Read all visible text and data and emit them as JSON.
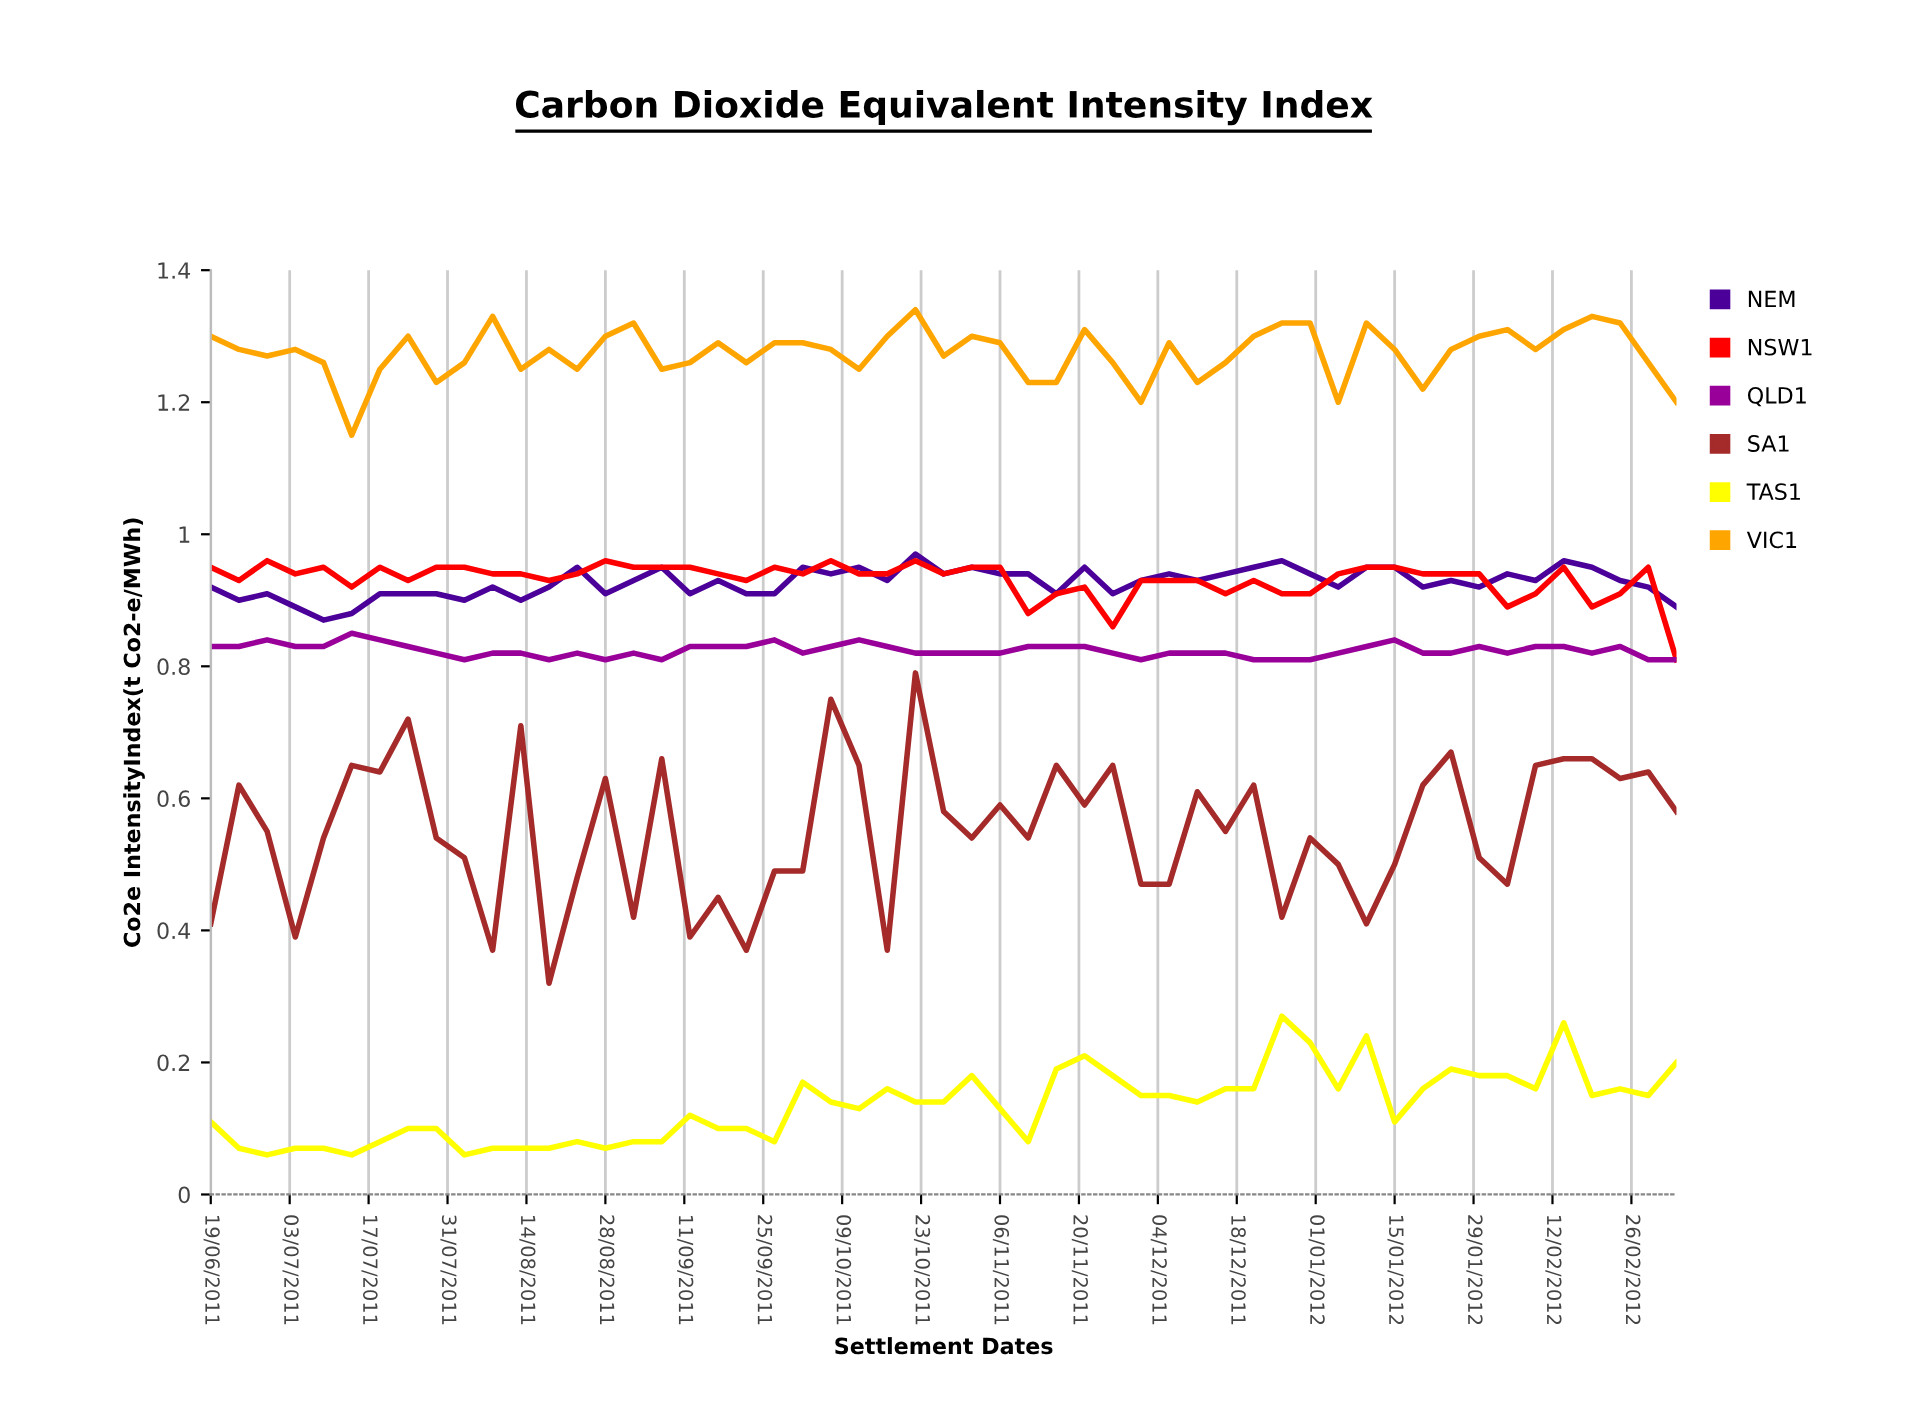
{
  "chart_data": {
    "type": "line",
    "title": "Carbon Dioxide Equivalent Intensity Index",
    "xlabel": "Settlement Dates",
    "ylabel": "Co2e IntensityIndex(t Co2-e/MWh)",
    "x": [
      "2011-06-19",
      "2011-06-24",
      "2011-06-29",
      "2011-07-04",
      "2011-07-09",
      "2011-07-14",
      "2011-07-19",
      "2011-07-24",
      "2011-07-29",
      "2011-08-03",
      "2011-08-08",
      "2011-08-13",
      "2011-08-18",
      "2011-08-23",
      "2011-08-28",
      "2011-09-02",
      "2011-09-07",
      "2011-09-12",
      "2011-09-17",
      "2011-09-22",
      "2011-09-27",
      "2011-10-02",
      "2011-10-07",
      "2011-10-12",
      "2011-10-17",
      "2011-10-22",
      "2011-10-27",
      "2011-11-01",
      "2011-11-06",
      "2011-11-11",
      "2011-11-16",
      "2011-11-21",
      "2011-11-26",
      "2011-12-01",
      "2011-12-06",
      "2011-12-11",
      "2011-12-16",
      "2011-12-21",
      "2011-12-26",
      "2011-12-31",
      "2012-01-05",
      "2012-01-10",
      "2012-01-15",
      "2012-01-20",
      "2012-01-25",
      "2012-01-30",
      "2012-02-04",
      "2012-02-09",
      "2012-02-14",
      "2012-02-19",
      "2012-02-24",
      "2012-02-29",
      "2012-03-05"
    ],
    "series": [
      {
        "name": "NEM",
        "color": "#4b0099",
        "values": [
          0.92,
          0.9,
          0.91,
          0.89,
          0.87,
          0.88,
          0.91,
          0.91,
          0.91,
          0.9,
          0.92,
          0.9,
          0.92,
          0.95,
          0.91,
          0.93,
          0.95,
          0.91,
          0.93,
          0.91,
          0.91,
          0.95,
          0.94,
          0.95,
          0.93,
          0.97,
          0.94,
          0.95,
          0.94,
          0.94,
          0.91,
          0.95,
          0.91,
          0.93,
          0.94,
          0.93,
          0.94,
          0.95,
          0.96,
          0.94,
          0.92,
          0.95,
          0.95,
          0.92,
          0.93,
          0.92,
          0.94,
          0.93,
          0.96,
          0.95,
          0.93,
          0.92,
          0.89
        ]
      },
      {
        "name": "NSW1",
        "color": "#ff0000",
        "values": [
          0.95,
          0.93,
          0.96,
          0.94,
          0.95,
          0.92,
          0.95,
          0.93,
          0.95,
          0.95,
          0.94,
          0.94,
          0.93,
          0.94,
          0.96,
          0.95,
          0.95,
          0.95,
          0.94,
          0.93,
          0.95,
          0.94,
          0.96,
          0.94,
          0.94,
          0.96,
          0.94,
          0.95,
          0.95,
          0.88,
          0.91,
          0.92,
          0.86,
          0.93,
          0.93,
          0.93,
          0.91,
          0.93,
          0.91,
          0.91,
          0.94,
          0.95,
          0.95,
          0.94,
          0.94,
          0.94,
          0.89,
          0.91,
          0.95,
          0.89,
          0.91,
          0.95,
          0.81
        ]
      },
      {
        "name": "QLD1",
        "color": "#990099",
        "values": [
          0.83,
          0.83,
          0.84,
          0.83,
          0.83,
          0.85,
          0.84,
          0.83,
          0.82,
          0.81,
          0.82,
          0.82,
          0.81,
          0.82,
          0.81,
          0.82,
          0.81,
          0.83,
          0.83,
          0.83,
          0.84,
          0.82,
          0.83,
          0.84,
          0.83,
          0.82,
          0.82,
          0.82,
          0.82,
          0.83,
          0.83,
          0.83,
          0.82,
          0.81,
          0.82,
          0.82,
          0.82,
          0.81,
          0.81,
          0.81,
          0.82,
          0.83,
          0.84,
          0.82,
          0.82,
          0.83,
          0.82,
          0.83,
          0.83,
          0.82,
          0.83,
          0.81,
          0.81
        ]
      },
      {
        "name": "SA1",
        "color": "#a52a2a",
        "values": [
          0.41,
          0.62,
          0.55,
          0.39,
          0.54,
          0.65,
          0.64,
          0.72,
          0.54,
          0.51,
          0.37,
          0.71,
          0.32,
          0.48,
          0.63,
          0.42,
          0.66,
          0.39,
          0.45,
          0.37,
          0.49,
          0.49,
          0.75,
          0.65,
          0.37,
          0.79,
          0.58,
          0.54,
          0.59,
          0.54,
          0.65,
          0.59,
          0.65,
          0.47,
          0.47,
          0.61,
          0.55,
          0.62,
          0.42,
          0.54,
          0.5,
          0.41,
          0.5,
          0.62,
          0.67,
          0.51,
          0.47,
          0.65,
          0.66,
          0.66,
          0.63,
          0.64,
          0.58
        ]
      },
      {
        "name": "TAS1",
        "color": "#ffff00",
        "values": [
          0.11,
          0.07,
          0.06,
          0.07,
          0.07,
          0.06,
          0.08,
          0.1,
          0.1,
          0.06,
          0.07,
          0.07,
          0.07,
          0.08,
          0.07,
          0.08,
          0.08,
          0.12,
          0.1,
          0.1,
          0.08,
          0.17,
          0.14,
          0.13,
          0.16,
          0.14,
          0.14,
          0.18,
          0.13,
          0.08,
          0.19,
          0.21,
          0.18,
          0.15,
          0.15,
          0.14,
          0.16,
          0.16,
          0.27,
          0.23,
          0.16,
          0.24,
          0.11,
          0.16,
          0.19,
          0.18,
          0.18,
          0.16,
          0.26,
          0.15,
          0.16,
          0.15,
          0.2
        ]
      },
      {
        "name": "VIC1",
        "color": "#ffa500",
        "values": [
          1.3,
          1.28,
          1.27,
          1.28,
          1.26,
          1.15,
          1.25,
          1.3,
          1.23,
          1.26,
          1.33,
          1.25,
          1.28,
          1.25,
          1.3,
          1.32,
          1.25,
          1.26,
          1.29,
          1.26,
          1.29,
          1.29,
          1.28,
          1.25,
          1.3,
          1.34,
          1.27,
          1.3,
          1.29,
          1.23,
          1.23,
          1.31,
          1.26,
          1.2,
          1.29,
          1.23,
          1.26,
          1.3,
          1.32,
          1.32,
          1.2,
          1.32,
          1.28,
          1.22,
          1.28,
          1.3,
          1.31,
          1.28,
          1.31,
          1.33,
          1.32,
          1.26,
          1.2
        ]
      }
    ],
    "xlim": [
      "2011-06-19",
      "2012-03-05"
    ],
    "xticks": [
      {
        "value": "2011-06-19",
        "label": "19/06/2011"
      },
      {
        "value": "2011-07-03",
        "label": "03/07/2011"
      },
      {
        "value": "2011-07-17",
        "label": "17/07/2011"
      },
      {
        "value": "2011-07-31",
        "label": "31/07/2011"
      },
      {
        "value": "2011-08-14",
        "label": "14/08/2011"
      },
      {
        "value": "2011-08-28",
        "label": "28/08/2011"
      },
      {
        "value": "2011-09-11",
        "label": "11/09/2011"
      },
      {
        "value": "2011-09-25",
        "label": "25/09/2011"
      },
      {
        "value": "2011-10-09",
        "label": "09/10/2011"
      },
      {
        "value": "2011-10-23",
        "label": "23/10/2011"
      },
      {
        "value": "2011-11-06",
        "label": "06/11/2011"
      },
      {
        "value": "2011-11-20",
        "label": "20/11/2011"
      },
      {
        "value": "2011-12-04",
        "label": "04/12/2011"
      },
      {
        "value": "2011-12-18",
        "label": "18/12/2011"
      },
      {
        "value": "2012-01-01",
        "label": "01/01/2012"
      },
      {
        "value": "2012-01-15",
        "label": "15/01/2012"
      },
      {
        "value": "2012-01-29",
        "label": "29/01/2012"
      },
      {
        "value": "2012-02-12",
        "label": "12/02/2012"
      },
      {
        "value": "2012-02-26",
        "label": "26/02/2012"
      }
    ],
    "ylim": [
      0,
      1.4
    ],
    "yticks": [
      0,
      0.2,
      0.4,
      0.6,
      0.8,
      1,
      1.2,
      1.4
    ],
    "grid": "x",
    "legend": "right",
    "marker": "none",
    "line_style": "solid"
  }
}
